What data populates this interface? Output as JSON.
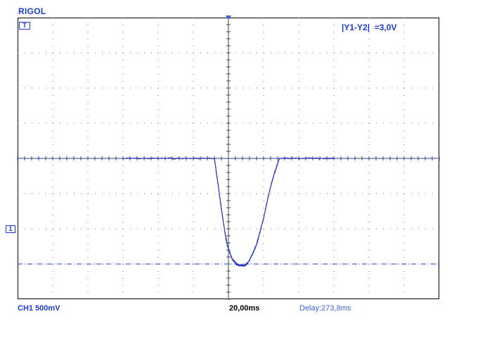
{
  "header": {
    "brand": "RIGOL"
  },
  "screen": {
    "cursor_label": "|Y1-Y2|",
    "cursor_value": "=3,0V",
    "trigger_marker": "T",
    "channel_marker": "1"
  },
  "status_bar": {
    "channel": "CH1 500mV",
    "timebase": "20,00ms",
    "delay": "Delay:273,8ms"
  },
  "colors": {
    "trace": "#1c2fbf",
    "accent": "#1a3ad6",
    "grid": "#7a7a7a"
  },
  "chart_data": {
    "type": "line",
    "grid": {
      "major_divisions_x": 12,
      "major_divisions_y": 8
    },
    "cursors": {
      "y1": 3.0,
      "y2": 0.0,
      "unit": "div-relative (V)"
    },
    "series": [
      {
        "x": [
          -6,
          -0.8,
          -0.6,
          -0.4,
          -0.2,
          -0.05,
          0.2,
          0.5,
          0.8,
          1.0,
          1.2,
          1.6,
          2.0,
          2.3,
          2.6,
          2.9,
          6
        ],
        "y": [
          3.0,
          3.0,
          2.3,
          1.55,
          0.9,
          0.5,
          0.15,
          -0.02,
          -0.05,
          -0.03,
          0.1,
          0.55,
          1.3,
          2.0,
          2.55,
          3.0,
          3.0
        ]
      }
    ]
  }
}
